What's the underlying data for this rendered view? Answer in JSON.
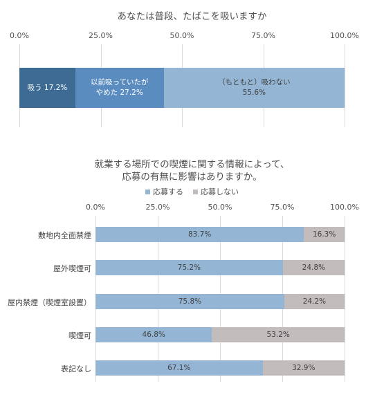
{
  "chart_data": [
    {
      "type": "bar",
      "orientation": "horizontal",
      "stacked": "100%",
      "title": "あなたは普段、たばこを吸いますか",
      "xlim": [
        0,
        100
      ],
      "tick_labels": [
        "0.0%",
        "25.0%",
        "50.0%",
        "75.0%",
        "100.0%"
      ],
      "grid": true,
      "series": [
        {
          "label": "吸う 17.2%",
          "value": 17.2,
          "color": "#3d6b94",
          "text_color": "#ffffff"
        },
        {
          "label": "以前吸っていたが\nやめた 27.2%",
          "value": 27.2,
          "color": "#5a8cc0",
          "text_color": "#ffffff"
        },
        {
          "label": "（もともと）吸わない\n55.6%",
          "value": 55.6,
          "color": "#94b6d4",
          "text_color": "#404040"
        }
      ]
    },
    {
      "type": "bar",
      "orientation": "horizontal",
      "stacked": "100%",
      "title_lines": [
        "就業する場所での喫煙に関する情報によって、",
        "応募の有無に影響はありますか。"
      ],
      "xlim": [
        0,
        100
      ],
      "tick_labels": [
        "0.0%",
        "25.0%",
        "50.0%",
        "75.0%",
        "100.0%"
      ],
      "grid": true,
      "legend_position": "top",
      "categories": [
        "敷地内全面禁煙",
        "屋外喫煙可",
        "屋内禁煙（喫煙室設置）",
        "喫煙可",
        "表記なし"
      ],
      "series": [
        {
          "name": "応募する",
          "color": "#94b6d4",
          "values": [
            83.7,
            75.2,
            75.8,
            46.8,
            67.1
          ],
          "labels": [
            "83.7%",
            "75.2%",
            "75.8%",
            "46.8%",
            "67.1%"
          ]
        },
        {
          "name": "応募しない",
          "color": "#c2bcbd",
          "values": [
            16.3,
            24.8,
            24.2,
            53.2,
            32.9
          ],
          "labels": [
            "16.3%",
            "24.8%",
            "24.2%",
            "53.2%",
            "32.9%"
          ]
        }
      ]
    }
  ]
}
